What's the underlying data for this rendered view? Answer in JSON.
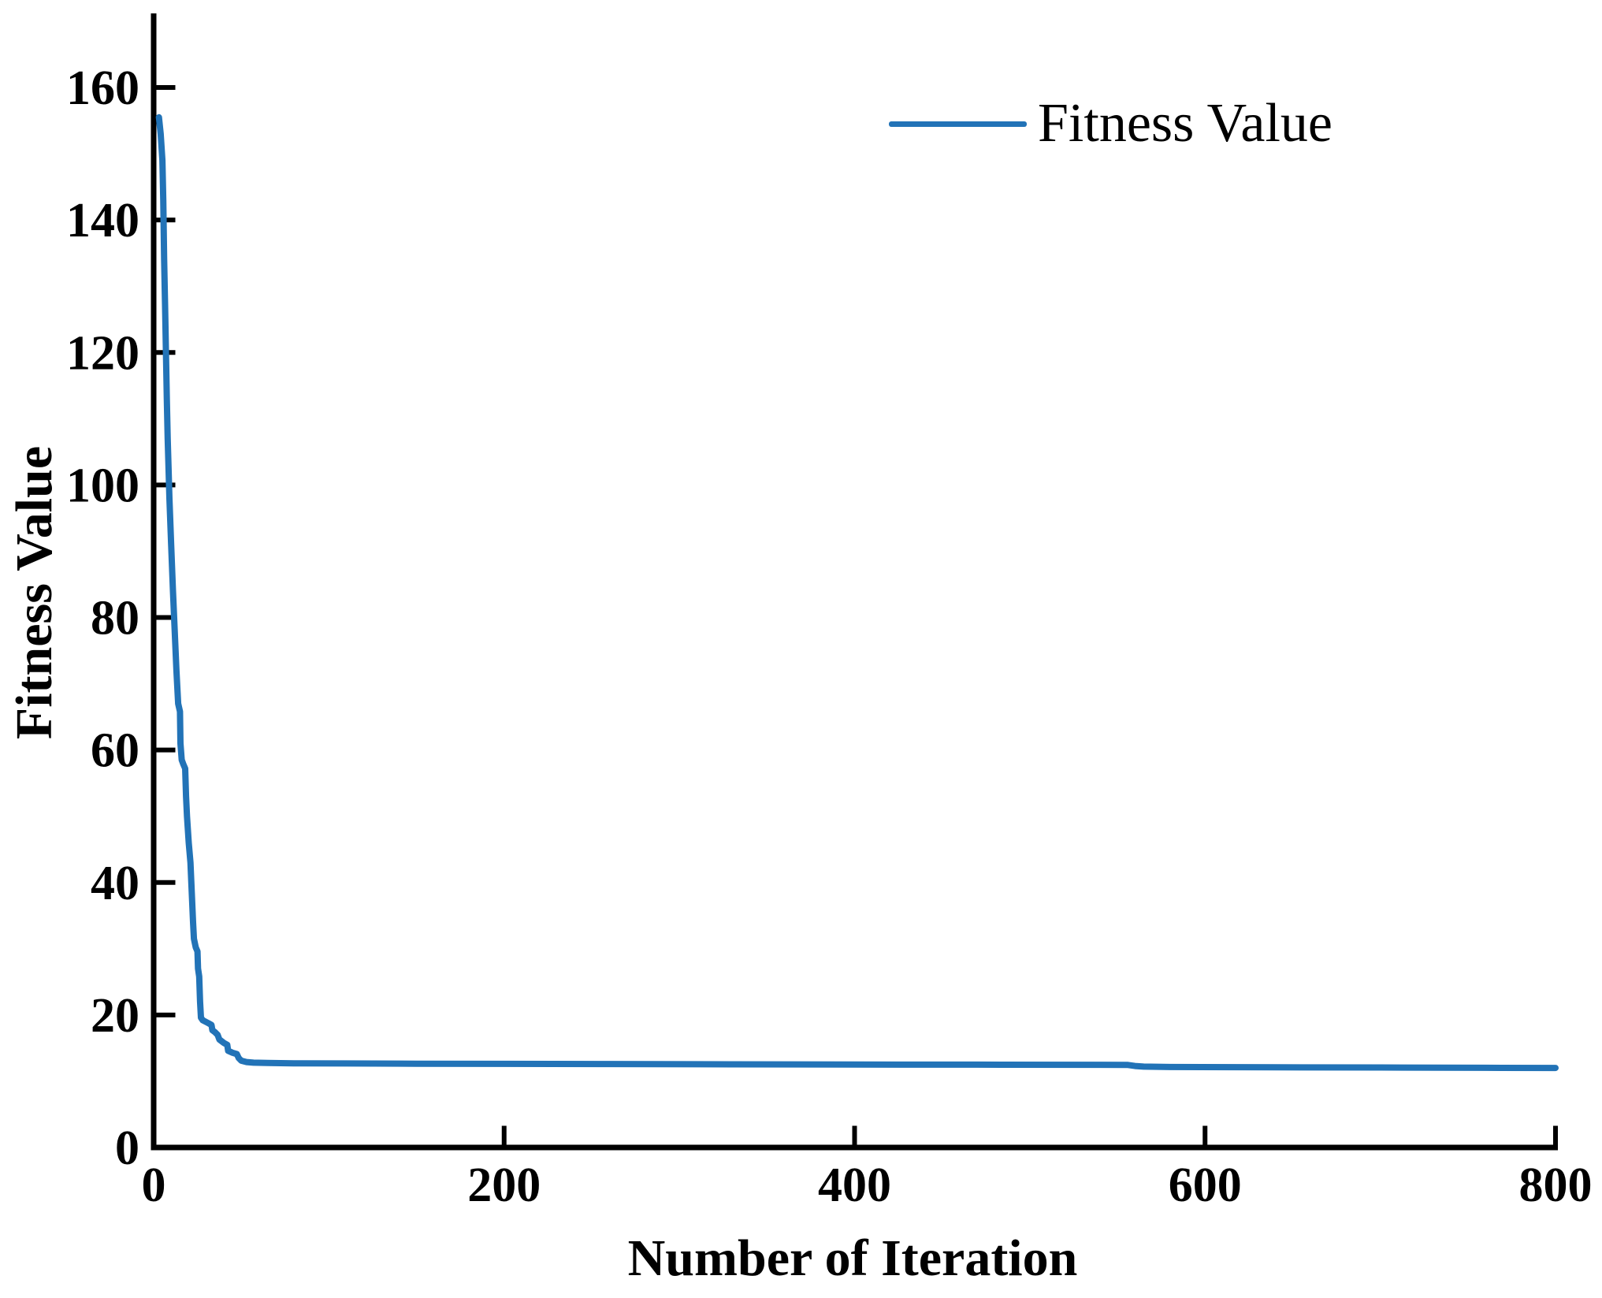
{
  "figure": {
    "background_color": "#ffffff",
    "axis_color": "#000000",
    "text_color": "#000000",
    "accent_color": "#2273b7"
  },
  "chart_data": {
    "type": "line",
    "title": "",
    "xlabel": "Number of Iteration",
    "ylabel": "Fitness Value",
    "legend": {
      "label": "Fitness Value",
      "position": "upper-right",
      "box": false,
      "swatch": "line"
    },
    "grid": false,
    "xlim": [
      0,
      800
    ],
    "ylim": [
      0,
      171
    ],
    "xticks": [
      0,
      200,
      400,
      600,
      800
    ],
    "yticks": [
      0,
      20,
      40,
      60,
      80,
      100,
      120,
      140,
      160
    ],
    "series": [
      {
        "name": "Fitness Value",
        "color": "#2273b7",
        "points": [
          [
            3,
            155.5
          ],
          [
            4,
            153
          ],
          [
            5,
            149
          ],
          [
            5.5,
            143
          ],
          [
            6,
            134
          ],
          [
            6.5,
            127
          ],
          [
            7,
            120
          ],
          [
            7.5,
            113
          ],
          [
            8,
            107
          ],
          [
            9,
            98
          ],
          [
            10,
            91
          ],
          [
            11,
            84
          ],
          [
            12,
            78
          ],
          [
            13,
            72
          ],
          [
            14,
            67
          ],
          [
            15,
            65.8
          ],
          [
            15.3,
            61
          ],
          [
            16,
            58.5
          ],
          [
            17,
            57.8
          ],
          [
            18,
            57.2
          ],
          [
            18.5,
            53
          ],
          [
            19,
            50
          ],
          [
            20,
            46
          ],
          [
            21,
            43
          ],
          [
            21.5,
            40
          ],
          [
            22,
            37
          ],
          [
            22.5,
            34
          ],
          [
            23,
            31.5
          ],
          [
            24,
            30.2
          ],
          [
            25,
            29.6
          ],
          [
            25.3,
            27
          ],
          [
            26,
            25.8
          ],
          [
            26.5,
            22
          ],
          [
            27,
            19.6
          ],
          [
            28,
            19.2
          ],
          [
            31,
            18.8
          ],
          [
            33,
            18.5
          ],
          [
            33.5,
            17.7
          ],
          [
            35,
            17.4
          ],
          [
            36.5,
            17
          ],
          [
            37.5,
            16.3
          ],
          [
            39,
            16
          ],
          [
            40,
            15.8
          ],
          [
            42,
            15.5
          ],
          [
            42.5,
            14.6
          ],
          [
            45,
            14.3
          ],
          [
            47.5,
            14.1
          ],
          [
            48.5,
            13.5
          ],
          [
            50,
            13.1
          ],
          [
            53,
            12.9
          ],
          [
            57,
            12.8
          ],
          [
            65,
            12.75
          ],
          [
            80,
            12.7
          ],
          [
            110,
            12.68
          ],
          [
            150,
            12.65
          ],
          [
            200,
            12.62
          ],
          [
            260,
            12.6
          ],
          [
            330,
            12.55
          ],
          [
            400,
            12.52
          ],
          [
            470,
            12.5
          ],
          [
            540,
            12.48
          ],
          [
            556,
            12.45
          ],
          [
            560,
            12.3
          ],
          [
            565,
            12.2
          ],
          [
            580,
            12.15
          ],
          [
            640,
            12.1
          ],
          [
            700,
            12.08
          ],
          [
            760,
            12.03
          ],
          [
            800,
            12.0
          ]
        ]
      }
    ]
  }
}
